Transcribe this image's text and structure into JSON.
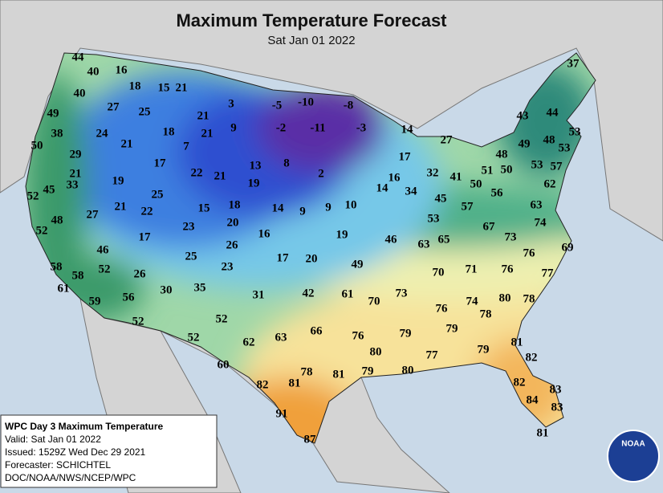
{
  "header": {
    "title": "Maximum Temperature Forecast",
    "subtitle": "Sat Jan 01 2022"
  },
  "temperatures": [
    44,
    40,
    16,
    18,
    15,
    21,
    40,
    27,
    25,
    3,
    -5,
    -10,
    -8,
    49,
    21,
    38,
    24,
    18,
    21,
    9,
    -2,
    -11,
    -3,
    14,
    27,
    50,
    29,
    21,
    7,
    17,
    37,
    43,
    44,
    53,
    49,
    48,
    53,
    48,
    51,
    50,
    53,
    57,
    62,
    63,
    17,
    22,
    21,
    13,
    8,
    2,
    16,
    14,
    32,
    41,
    50,
    56,
    34,
    45,
    57,
    21,
    19,
    25,
    33,
    52,
    45,
    19,
    15,
    18,
    14,
    9,
    9,
    10,
    48,
    27,
    21,
    22,
    23,
    20,
    53,
    67,
    74,
    52,
    17,
    16,
    19,
    46,
    63,
    65,
    73,
    46,
    26,
    25,
    69,
    76,
    58,
    52,
    23,
    17,
    20,
    49,
    70,
    71,
    76,
    77,
    58,
    26,
    61,
    30,
    35,
    31,
    42,
    61,
    73,
    70,
    76,
    74,
    80,
    78,
    59,
    56,
    78,
    52,
    52,
    79,
    79,
    52,
    62,
    63,
    66,
    76,
    81,
    80,
    77,
    79,
    60,
    82,
    78,
    81,
    79,
    80,
    82,
    81,
    82,
    83,
    84,
    83,
    91,
    87,
    81
  ],
  "info_box": {
    "lines": [
      "WPC Day 3 Maximum Temperature",
      "Valid: Sat Jan 01 2022",
      "Issued: 1529Z Wed Dec 29 2021",
      "Forecaster: SCHICHTEL",
      "DOC/NOAA/NWS/NCEP/WPC"
    ]
  },
  "logo": "NOAA"
}
